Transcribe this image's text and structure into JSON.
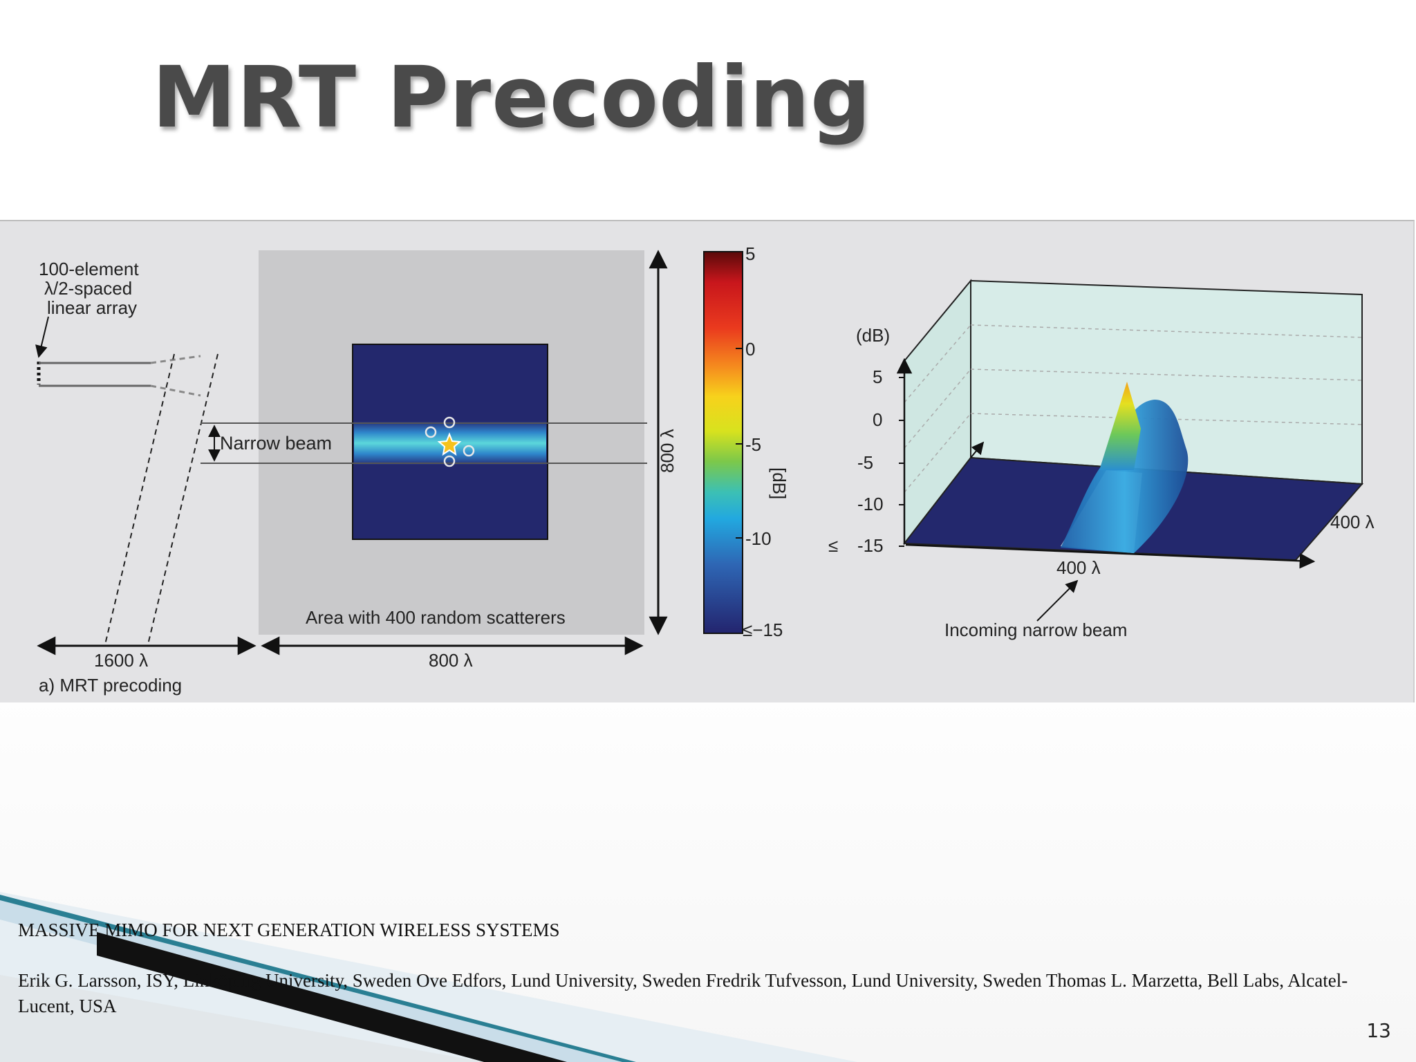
{
  "slide": {
    "title": "MRT  Precoding",
    "page_number": "13"
  },
  "figure": {
    "panel_label": "a) MRT precoding",
    "array_label_line1": "100-element",
    "array_label_line2": "λ/2-spaced",
    "array_label_line3": "linear array",
    "narrow_beam_label": "Narrow beam",
    "scatterer_area_label": "Area with 400 random scatterers",
    "dim_left": "1600 λ",
    "dim_bottom": "800 λ",
    "dim_vertical": "800 λ",
    "colorbar": {
      "unit_label": "[dB]",
      "ticks": [
        "5",
        "0",
        "-5",
        "-10",
        "≤−15"
      ]
    },
    "plot3d": {
      "z_unit": "(dB)",
      "z_ticks": [
        "5",
        "0",
        "-5",
        "-10",
        "-15"
      ],
      "le_symbol": "≤",
      "x_label": "400 λ",
      "y_label": "400 λ",
      "annotation": "Incoming narrow beam"
    }
  },
  "reference": {
    "title": "MASSIVE MIMO FOR NEXT GENERATION WIRELESS SYSTEMS",
    "authors": "Erik G. Larsson, ISY, Linköping University, Sweden Ove Edfors, Lund University, Sweden Fredrik Tufvesson, Lund University, Sweden Thomas L. Marzetta, Bell Labs, Alcatel-Lucent, USA"
  }
}
